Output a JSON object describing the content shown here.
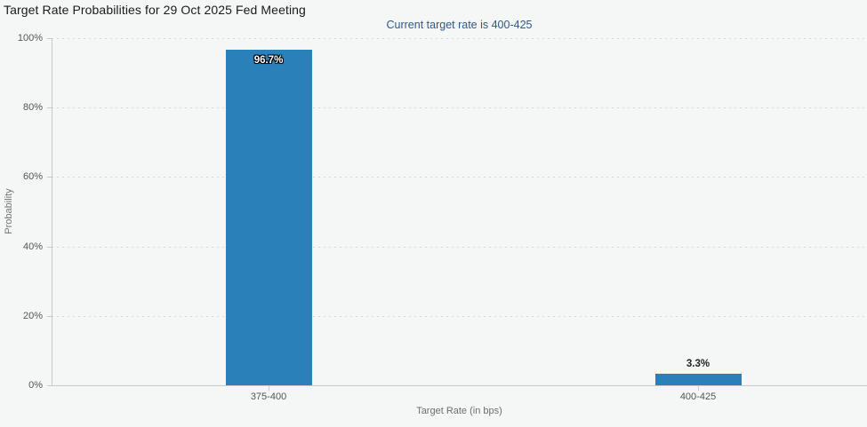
{
  "chart_data": {
    "type": "bar",
    "title": "Target Rate Probabilities for 29 Oct 2025 Fed Meeting",
    "subtitle": "Current target rate is 400-425",
    "categories": [
      "375-400",
      "400-425"
    ],
    "values": [
      96.7,
      3.3
    ],
    "value_labels": [
      "96.7%",
      "3.3%"
    ],
    "xlabel": "Target Rate (in bps)",
    "ylabel": "Probability",
    "ylim": [
      0,
      100
    ],
    "ytick_labels": [
      "100%",
      "80%",
      "60%",
      "40%",
      "20%",
      "0%"
    ],
    "grid": "horizontal-dotted",
    "legend": "none",
    "bar_color": "#2a80b9",
    "subtitle_color": "#2f5a8c",
    "background_color": "#f5f6f6"
  }
}
